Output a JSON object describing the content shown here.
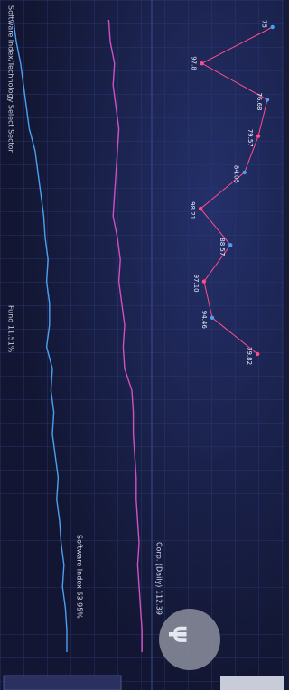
{
  "chart_data": [
    {
      "type": "line",
      "title": "Software Index/Technology Select Sector",
      "subtitle": "Fund 11.51%",
      "ylim": [
        0,
        100
      ],
      "series": [
        {
          "name": "Software Index 63.95%",
          "color": "#4aa0f0",
          "values": [
            3,
            5,
            8,
            10,
            12,
            14,
            18,
            20,
            22,
            24,
            25,
            27,
            26,
            28,
            28,
            26,
            30,
            29,
            31,
            30,
            32,
            34,
            33,
            35,
            36,
            38,
            37,
            39,
            40,
            40
          ]
        },
        {
          "name": "Corp. (Daily) 112.39",
          "color": "#d050c0",
          "values": [
            69,
            70,
            73,
            72,
            74,
            76,
            75,
            74,
            73,
            72,
            75,
            77,
            76,
            78,
            80,
            79,
            80,
            85,
            86,
            86,
            87,
            88,
            88,
            89,
            90,
            89,
            90,
            91,
            92,
            92
          ]
        }
      ]
    },
    {
      "type": "line",
      "ylim": [
        72,
        100
      ],
      "series": [
        {
          "color": "#ff4d8a",
          "values": [
            75,
            97.8,
            76.68,
            79.57,
            84.05,
            98.21,
            88.57,
            97.1,
            94.46,
            79.82
          ],
          "value_labels": [
            "75",
            "97.8",
            "76.68",
            "79.57",
            "84.05",
            "98.21",
            "88.57",
            "97.10",
            "94.46",
            "79.82"
          ]
        }
      ]
    }
  ]
}
